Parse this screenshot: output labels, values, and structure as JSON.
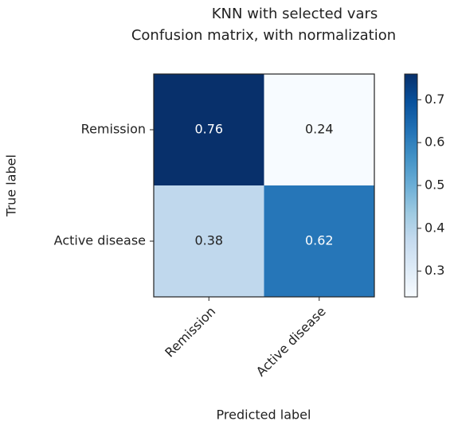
{
  "chart_data": {
    "type": "heatmap",
    "title": "KNN with selected vars",
    "subtitle": "Confusion matrix, with normalization",
    "x_categories": [
      "Remission",
      "Active disease"
    ],
    "y_categories": [
      "Remission",
      "Active disease"
    ],
    "values": [
      [
        0.76,
        0.24
      ],
      [
        0.38,
        0.62
      ]
    ],
    "xlabel": "Predicted label",
    "ylabel": "True label",
    "colormap": "Blues",
    "clim": [
      0.24,
      0.76
    ],
    "cticks": [
      0.3,
      0.4,
      0.5,
      0.6,
      0.7
    ]
  }
}
